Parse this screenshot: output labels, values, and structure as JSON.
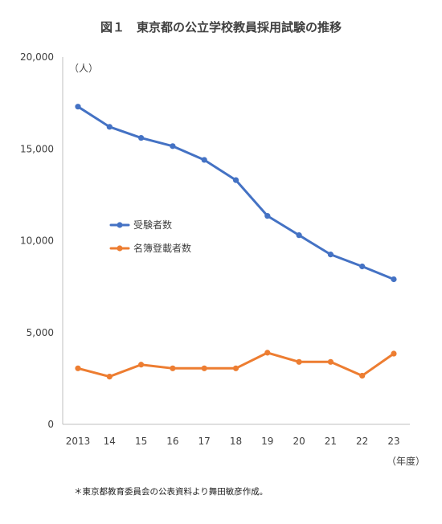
{
  "chart_data": {
    "type": "line",
    "title": "図１　東京都の公立学校教員採用試験の推移",
    "y_unit": "（人）",
    "x_unit": "（年度）",
    "categories": [
      "2013",
      "14",
      "15",
      "16",
      "17",
      "18",
      "19",
      "20",
      "21",
      "22",
      "23"
    ],
    "ylim": [
      0,
      20000
    ],
    "yticks": [
      0,
      5000,
      10000,
      15000,
      20000
    ],
    "ytick_labels": [
      "0",
      "5,000",
      "10,000",
      "15,000",
      "20,000"
    ],
    "grid": false,
    "legend_position": "center-left",
    "series": [
      {
        "name": "受験者数",
        "color": "#4472C4",
        "values": [
          17300,
          16200,
          15600,
          15150,
          14400,
          13300,
          11350,
          10300,
          9250,
          8600,
          7900
        ]
      },
      {
        "name": "名簿登載者数",
        "color": "#ED7D31",
        "values": [
          3050,
          2600,
          3250,
          3050,
          3050,
          3050,
          3900,
          3400,
          3400,
          2650,
          3850
        ]
      }
    ],
    "footnote": "＊東京都教育委員会の公表資料より舞田敏彦作成。"
  }
}
